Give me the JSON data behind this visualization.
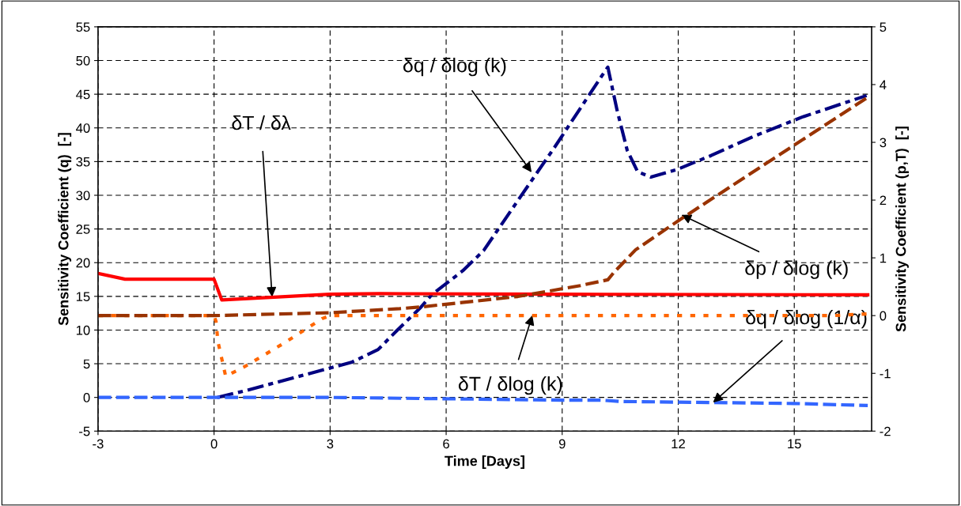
{
  "chart_data": {
    "type": "line",
    "xlabel": "Time [Days]",
    "ylabel": "Sensitivity Coefficient (q)  [-]",
    "y2label": "Sensitivity Coefficient (p,T)  [-]",
    "xlim": [
      -3,
      17
    ],
    "xticks": [
      -3,
      0,
      3,
      6,
      9,
      12,
      15
    ],
    "ylim": [
      -5,
      55
    ],
    "yticks": [
      -5,
      0,
      5,
      10,
      15,
      20,
      25,
      30,
      35,
      40,
      45,
      50,
      55
    ],
    "y2lim": [
      -2,
      5
    ],
    "y2ticks": [
      -2,
      -1,
      0,
      1,
      2,
      3,
      4,
      5
    ],
    "grid": true,
    "legend": false,
    "series": [
      {
        "color": "#ff0000",
        "axis": "y2",
        "line_style": "solid",
        "x": [
          -3,
          -2.3,
          0,
          0.2,
          3,
          4.3,
          9,
          16.9
        ],
        "values": [
          0.73,
          0.63,
          0.63,
          0.27,
          0.37,
          0.38,
          0.37,
          0.36
        ]
      },
      {
        "color": "#ff6600",
        "axis": "y2",
        "line_style": "dotted",
        "x": [
          -3,
          0,
          0.05,
          0.1,
          0.3,
          0.8,
          1.8,
          2.8,
          3,
          16,
          16.9
        ],
        "values": [
          0,
          0,
          -0.1,
          -0.45,
          -1.05,
          -0.88,
          -0.48,
          -0.05,
          0,
          0,
          0.03
        ]
      },
      {
        "color": "#993300",
        "axis": "y2",
        "line_style": "dashed",
        "x": [
          -3,
          0,
          3,
          4.8,
          5.35,
          7.85,
          9.47,
          10.18,
          10.34,
          10.9,
          12.04,
          16.9
        ],
        "values": [
          0,
          0,
          0.05,
          0.12,
          0.15,
          0.33,
          0.52,
          0.62,
          0.75,
          1.14,
          1.66,
          3.78
        ]
      },
      {
        "color": "#000080",
        "axis": "y",
        "line_style": "dashdot",
        "x": [
          0.08,
          0.81,
          2.37,
          3.55,
          4.24,
          4.74,
          5.35,
          5.62,
          6.43,
          6.97,
          7.9,
          8.8,
          10.01,
          10.18,
          10.42,
          10.68,
          10.95,
          11.29,
          11.96,
          12.85,
          13.93,
          15.2,
          16.87
        ],
        "values": [
          0,
          1.0,
          3.4,
          5.2,
          7.1,
          10,
          13.4,
          15.2,
          18.8,
          21.8,
          29.6,
          37.1,
          47.6,
          49.0,
          42.6,
          36.7,
          33.5,
          32.7,
          33.8,
          35.9,
          38.7,
          41.6,
          44.8
        ]
      },
      {
        "color": "#3366ff",
        "axis": "y",
        "line_style": "dashed",
        "x": [
          -3,
          3,
          6,
          9,
          10,
          10.5,
          12,
          15,
          16.9
        ],
        "values": [
          0,
          0,
          -0.2,
          -0.4,
          -0.4,
          -0.6,
          -0.7,
          -0.9,
          -1.2
        ]
      }
    ],
    "annotations": [
      {
        "text": "δT / δλ",
        "x": 1.5,
        "y": 14.9
      },
      {
        "text": "δq / δlog (k)",
        "x": 8.21,
        "y": 33.4
      },
      {
        "text": "δp / δlog (k)",
        "x": 12.08,
        "y": 27.1
      },
      {
        "text": "δT / δlog (k)",
        "x": 8.23,
        "y": 12.2
      },
      {
        "text": "δq / δlog (1/α)",
        "x": 12.9,
        "y": -0.76
      }
    ]
  }
}
